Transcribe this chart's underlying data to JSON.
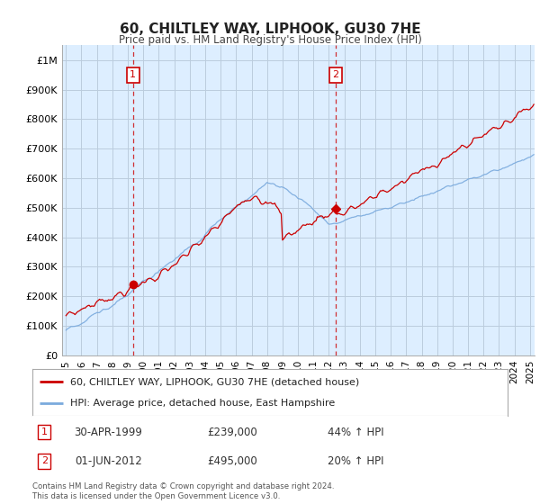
{
  "title": "60, CHILTLEY WAY, LIPHOOK, GU30 7HE",
  "subtitle": "Price paid vs. HM Land Registry's House Price Index (HPI)",
  "footer": "Contains HM Land Registry data © Crown copyright and database right 2024.\nThis data is licensed under the Open Government Licence v3.0.",
  "legend_entry1": "60, CHILTLEY WAY, LIPHOOK, GU30 7HE (detached house)",
  "legend_entry2": "HPI: Average price, detached house, East Hampshire",
  "annotation1": {
    "label": "1",
    "date_idx": 1999.33,
    "value": 239000,
    "text_date": "30-APR-1999",
    "text_price": "£239,000",
    "text_change": "44% ↑ HPI"
  },
  "annotation2": {
    "label": "2",
    "date_idx": 2012.42,
    "value": 495000,
    "text_date": "01-JUN-2012",
    "text_price": "£495,000",
    "text_change": "20% ↑ HPI"
  },
  "price_line_color": "#cc0000",
  "hpi_line_color": "#7aaadd",
  "annotation_color": "#cc0000",
  "background_color": "#ffffff",
  "plot_bg_color": "#ddeeff",
  "grid_color": "#bbccdd",
  "ylim": [
    0,
    1050000
  ],
  "yticks": [
    0,
    100000,
    200000,
    300000,
    400000,
    500000,
    600000,
    700000,
    800000,
    900000,
    1000000
  ],
  "ytick_labels": [
    "£0",
    "£100K",
    "£200K",
    "£300K",
    "£400K",
    "£500K",
    "£600K",
    "£700K",
    "£800K",
    "£900K",
    "£1M"
  ],
  "xlim_start": 1994.75,
  "xlim_end": 2025.3,
  "xticks": [
    1995,
    1996,
    1997,
    1998,
    1999,
    2000,
    2001,
    2002,
    2003,
    2004,
    2005,
    2006,
    2007,
    2008,
    2009,
    2010,
    2011,
    2012,
    2013,
    2014,
    2015,
    2016,
    2017,
    2018,
    2019,
    2020,
    2021,
    2022,
    2023,
    2024,
    2025
  ]
}
